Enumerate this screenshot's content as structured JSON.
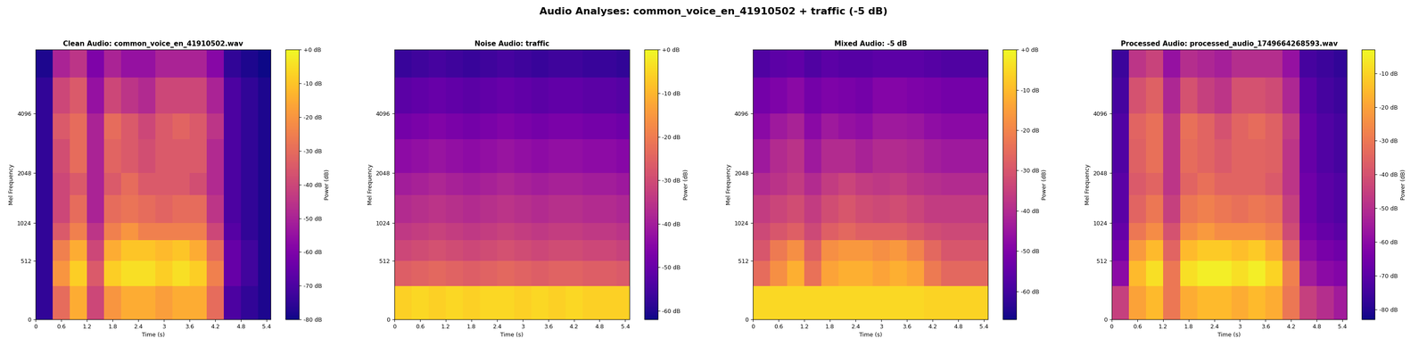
{
  "title": "Audio Analyses: common_voice_en_41910502 + traffic (-5 dB)",
  "chart_data": [
    {
      "type": "heatmap",
      "title": "Clean Audio: common_voice_en_41910502.wav",
      "x_label": "Time (s)",
      "y_label": "Mel Frequency",
      "xlim": [
        0,
        5.5
      ],
      "xticks": [
        0,
        0.6,
        1.2,
        1.8,
        2.4,
        3,
        3.6,
        4.2,
        4.8,
        5.4
      ],
      "ylim": [
        0,
        8000
      ],
      "yticks": [
        0,
        512,
        1024,
        2048,
        4096
      ],
      "x_edges": [
        0,
        0.4,
        0.8,
        1.2,
        1.6,
        2.0,
        2.4,
        2.8,
        3.2,
        3.6,
        4.0,
        4.4,
        4.8,
        5.2,
        5.5
      ],
      "y_edges": [
        0,
        256,
        512,
        768,
        1024,
        1536,
        2048,
        3072,
        4096,
        6000,
        8000
      ],
      "cells": [
        [
          -75,
          -30,
          -15,
          -40,
          -20,
          -15,
          -15,
          -18,
          -15,
          -15,
          -30,
          -70,
          -75,
          -78
        ],
        [
          -75,
          -20,
          -8,
          -35,
          -8,
          -5,
          -5,
          -8,
          -5,
          -8,
          -25,
          -65,
          -72,
          -78
        ],
        [
          -75,
          -25,
          -15,
          -40,
          -15,
          -10,
          -10,
          -12,
          -10,
          -15,
          -30,
          -65,
          -72,
          -78
        ],
        [
          -75,
          -35,
          -25,
          -45,
          -25,
          -20,
          -25,
          -25,
          -25,
          -25,
          -40,
          -68,
          -75,
          -78
        ],
        [
          -75,
          -40,
          -30,
          -50,
          -30,
          -28,
          -30,
          -32,
          -30,
          -30,
          -45,
          -70,
          -75,
          -78
        ],
        [
          -75,
          -40,
          -35,
          -50,
          -35,
          -30,
          -35,
          -35,
          -35,
          -38,
          -48,
          -70,
          -75,
          -78
        ],
        [
          -75,
          -38,
          -30,
          -50,
          -32,
          -35,
          -38,
          -35,
          -35,
          -35,
          -48,
          -70,
          -75,
          -78
        ],
        [
          -75,
          -35,
          -30,
          -50,
          -30,
          -35,
          -40,
          -35,
          -32,
          -35,
          -45,
          -70,
          -75,
          -78
        ],
        [
          -75,
          -40,
          -35,
          -55,
          -40,
          -45,
          -48,
          -40,
          -40,
          -40,
          -50,
          -70,
          -75,
          -78
        ],
        [
          -78,
          -50,
          -45,
          -60,
          -50,
          -55,
          -55,
          -50,
          -50,
          -50,
          -58,
          -75,
          -78,
          -80
        ]
      ],
      "colorbar": {
        "label": "Power (dB)",
        "range": [
          -80,
          0
        ],
        "ticks": [
          {
            "value": 0,
            "label": "+0 dB"
          },
          {
            "value": -10,
            "label": "-10 dB"
          },
          {
            "value": -20,
            "label": "-20 dB"
          },
          {
            "value": -30,
            "label": "-30 dB"
          },
          {
            "value": -40,
            "label": "-40 dB"
          },
          {
            "value": -50,
            "label": "-50 dB"
          },
          {
            "value": -60,
            "label": "-60 dB"
          },
          {
            "value": -70,
            "label": "-70 dB"
          },
          {
            "value": -80,
            "label": "-80 dB"
          }
        ]
      }
    },
    {
      "type": "heatmap",
      "title": "Noise Audio: traffic",
      "x_label": "Time (s)",
      "y_label": "Mel Frequency",
      "xlim": [
        0,
        5.5
      ],
      "xticks": [
        0,
        0.6,
        1.2,
        1.8,
        2.4,
        3,
        3.6,
        4.2,
        4.8,
        5.4
      ],
      "ylim": [
        0,
        8000
      ],
      "yticks": [
        0,
        512,
        1024,
        2048,
        4096
      ],
      "x_edges": [
        0,
        0.4,
        0.8,
        1.2,
        1.6,
        2.0,
        2.4,
        2.8,
        3.2,
        3.6,
        4.0,
        4.4,
        4.8,
        5.2,
        5.5
      ],
      "y_edges": [
        0,
        256,
        512,
        768,
        1024,
        1536,
        2048,
        3072,
        4096,
        6000,
        8000
      ],
      "cells": [
        [
          -6,
          -5,
          -6,
          -5,
          -6,
          -5,
          -5,
          -6,
          -5,
          -6,
          -5,
          -6,
          -6,
          -6
        ],
        [
          -26,
          -25,
          -24,
          -25,
          -26,
          -25,
          -24,
          -25,
          -26,
          -25,
          -25,
          -26,
          -26,
          -27
        ],
        [
          -31,
          -30,
          -29,
          -30,
          -31,
          -30,
          -29,
          -30,
          -31,
          -30,
          -30,
          -31,
          -31,
          -32
        ],
        [
          -34,
          -33,
          -32,
          -33,
          -34,
          -33,
          -32,
          -33,
          -34,
          -33,
          -33,
          -34,
          -34,
          -35
        ],
        [
          -37,
          -36,
          -35,
          -36,
          -37,
          -36,
          -35,
          -36,
          -37,
          -36,
          -36,
          -37,
          -37,
          -38
        ],
        [
          -40,
          -39,
          -38,
          -39,
          -40,
          -39,
          -38,
          -39,
          -40,
          -39,
          -39,
          -40,
          -40,
          -41
        ],
        [
          -44,
          -43,
          -42,
          -43,
          -44,
          -43,
          -42,
          -43,
          -44,
          -43,
          -43,
          -44,
          -44,
          -45
        ],
        [
          -48,
          -47,
          -46,
          -47,
          -48,
          -47,
          -46,
          -47,
          -48,
          -47,
          -47,
          -48,
          -48,
          -49
        ],
        [
          -52,
          -51,
          -50,
          -51,
          -52,
          -51,
          -50,
          -51,
          -52,
          -51,
          -51,
          -52,
          -52,
          -53
        ],
        [
          -57,
          -56,
          -55,
          -56,
          -57,
          -56,
          -55,
          -56,
          -57,
          -56,
          -56,
          -57,
          -57,
          -58
        ]
      ],
      "colorbar": {
        "label": "Power (dB)",
        "range": [
          -62,
          0
        ],
        "ticks": [
          {
            "value": 0,
            "label": "+0 dB"
          },
          {
            "value": -10,
            "label": "-10 dB"
          },
          {
            "value": -20,
            "label": "-20 dB"
          },
          {
            "value": -30,
            "label": "-30 dB"
          },
          {
            "value": -40,
            "label": "-40 dB"
          },
          {
            "value": -50,
            "label": "-50 dB"
          },
          {
            "value": -60,
            "label": "-60 dB"
          }
        ]
      }
    },
    {
      "type": "heatmap",
      "title": "Mixed Audio: -5 dB",
      "x_label": "Time (s)",
      "y_label": "Mel Frequency",
      "xlim": [
        0,
        5.5
      ],
      "xticks": [
        0,
        0.6,
        1.2,
        1.8,
        2.4,
        3,
        3.6,
        4.2,
        4.8,
        5.4
      ],
      "ylim": [
        0,
        8000
      ],
      "yticks": [
        0,
        512,
        1024,
        2048,
        4096
      ],
      "x_edges": [
        0,
        0.4,
        0.8,
        1.2,
        1.6,
        2.0,
        2.4,
        2.8,
        3.2,
        3.6,
        4.0,
        4.4,
        4.8,
        5.2,
        5.5
      ],
      "y_edges": [
        0,
        256,
        512,
        768,
        1024,
        1536,
        2048,
        3072,
        4096,
        6000,
        8000
      ],
      "cells": [
        [
          -5,
          -5,
          -5,
          -5,
          -5,
          -5,
          -5,
          -5,
          -5,
          -5,
          -6,
          -6,
          -6,
          -6
        ],
        [
          -25,
          -18,
          -12,
          -24,
          -14,
          -12,
          -12,
          -14,
          -12,
          -14,
          -22,
          -26,
          -26,
          -26
        ],
        [
          -30,
          -22,
          -18,
          -28,
          -18,
          -16,
          -16,
          -18,
          -16,
          -20,
          -26,
          -30,
          -30,
          -30
        ],
        [
          -33,
          -30,
          -28,
          -33,
          -28,
          -26,
          -28,
          -28,
          -28,
          -30,
          -32,
          -33,
          -33,
          -33
        ],
        [
          -36,
          -34,
          -32,
          -36,
          -32,
          -30,
          -32,
          -33,
          -32,
          -34,
          -36,
          -36,
          -36,
          -36
        ],
        [
          -40,
          -38,
          -36,
          -40,
          -36,
          -34,
          -36,
          -37,
          -36,
          -38,
          -39,
          -40,
          -40,
          -40
        ],
        [
          -44,
          -40,
          -38,
          -44,
          -40,
          -40,
          -42,
          -40,
          -40,
          -41,
          -43,
          -44,
          -44,
          -44
        ],
        [
          -48,
          -44,
          -42,
          -48,
          -44,
          -46,
          -47,
          -44,
          -44,
          -45,
          -47,
          -48,
          -48,
          -48
        ],
        [
          -52,
          -50,
          -48,
          -52,
          -50,
          -51,
          -52,
          -49,
          -49,
          -50,
          -51,
          -52,
          -52,
          -52
        ],
        [
          -58,
          -56,
          -55,
          -58,
          -56,
          -57,
          -57,
          -56,
          -56,
          -56,
          -57,
          -58,
          -58,
          -58
        ]
      ],
      "colorbar": {
        "label": "Power (dB)",
        "range": [
          -67,
          0
        ],
        "ticks": [
          {
            "value": 0,
            "label": "+0 dB"
          },
          {
            "value": -10,
            "label": "-10 dB"
          },
          {
            "value": -20,
            "label": "-20 dB"
          },
          {
            "value": -30,
            "label": "-30 dB"
          },
          {
            "value": -40,
            "label": "-40 dB"
          },
          {
            "value": -50,
            "label": "-50 dB"
          },
          {
            "value": -60,
            "label": "-60 dB"
          }
        ]
      }
    },
    {
      "type": "heatmap",
      "title": "Processed Audio: processed_audio_1749664268593.wav",
      "x_label": "Time (s)",
      "y_label": "Mel Frequency",
      "xlim": [
        0,
        5.5
      ],
      "xticks": [
        0,
        0.6,
        1.2,
        1.8,
        2.4,
        3,
        3.6,
        4.2,
        4.8,
        5.4
      ],
      "ylim": [
        0,
        8000
      ],
      "yticks": [
        0,
        512,
        1024,
        2048,
        4096
      ],
      "x_edges": [
        0,
        0.4,
        0.8,
        1.2,
        1.6,
        2.0,
        2.4,
        2.8,
        3.2,
        3.6,
        4.0,
        4.4,
        4.8,
        5.2,
        5.5
      ],
      "y_edges": [
        0,
        256,
        512,
        768,
        1024,
        1536,
        2048,
        3072,
        4096,
        6000,
        8000
      ],
      "cells": [
        [
          -45,
          -20,
          -15,
          -30,
          -18,
          -15,
          -15,
          -18,
          -15,
          -18,
          -30,
          -45,
          -50,
          -55
        ],
        [
          -60,
          -15,
          -8,
          -30,
          -8,
          -5,
          -5,
          -8,
          -5,
          -10,
          -28,
          -55,
          -60,
          -62
        ],
        [
          -65,
          -22,
          -15,
          -35,
          -15,
          -12,
          -12,
          -14,
          -12,
          -18,
          -35,
          -60,
          -64,
          -66
        ],
        [
          -68,
          -30,
          -25,
          -40,
          -25,
          -22,
          -25,
          -25,
          -25,
          -28,
          -42,
          -64,
          -68,
          -70
        ],
        [
          -70,
          -35,
          -30,
          -45,
          -30,
          -28,
          -30,
          -32,
          -30,
          -32,
          -45,
          -66,
          -70,
          -72
        ],
        [
          -70,
          -38,
          -35,
          -48,
          -35,
          -32,
          -35,
          -35,
          -35,
          -38,
          -48,
          -66,
          -70,
          -72
        ],
        [
          -72,
          -36,
          -32,
          -48,
          -33,
          -35,
          -38,
          -35,
          -35,
          -36,
          -48,
          -68,
          -72,
          -74
        ],
        [
          -72,
          -35,
          -32,
          -48,
          -32,
          -35,
          -40,
          -35,
          -33,
          -36,
          -46,
          -68,
          -72,
          -74
        ],
        [
          -74,
          -40,
          -36,
          -52,
          -40,
          -45,
          -48,
          -40,
          -40,
          -42,
          -52,
          -70,
          -74,
          -76
        ],
        [
          -76,
          -48,
          -44,
          -58,
          -50,
          -52,
          -54,
          -50,
          -50,
          -50,
          -58,
          -74,
          -76,
          -78
        ]
      ],
      "colorbar": {
        "label": "Power (dB)",
        "range": [
          -83,
          -3
        ],
        "ticks": [
          {
            "value": -10,
            "label": "-10 dB"
          },
          {
            "value": -20,
            "label": "-20 dB"
          },
          {
            "value": -30,
            "label": "-30 dB"
          },
          {
            "value": -40,
            "label": "-40 dB"
          },
          {
            "value": -50,
            "label": "-50 dB"
          },
          {
            "value": -60,
            "label": "-60 dB"
          },
          {
            "value": -70,
            "label": "-70 dB"
          },
          {
            "value": -80,
            "label": "-80 dB"
          }
        ]
      }
    }
  ]
}
